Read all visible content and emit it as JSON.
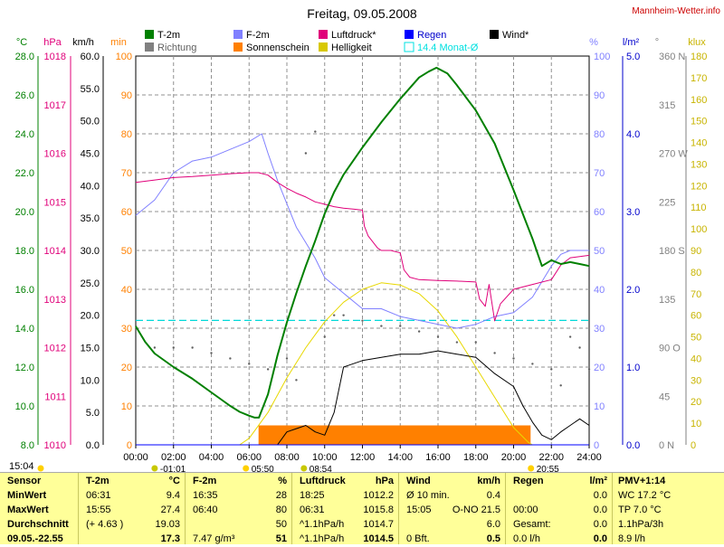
{
  "title": "Freitag, 09.05.2008",
  "site": "Mannheim-Wetter.info",
  "legend": [
    {
      "label": "T-2m",
      "color": "#008000"
    },
    {
      "label": "Richtung",
      "color": "#808080"
    },
    {
      "label": "F-2m",
      "color": "#8080ff"
    },
    {
      "label": "Sonnenschein",
      "color": "#ff8000"
    },
    {
      "label": "Luftdruck*",
      "color": "#e0007a"
    },
    {
      "label": "Helligkeit",
      "color": "#d8c800"
    },
    {
      "label": "Regen",
      "color": "#0000ff"
    },
    {
      "label": "14.4 Monat-Ø",
      "color": "#00e0e0"
    },
    {
      "label": "Wind*",
      "color": "#000000"
    }
  ],
  "axis_units": {
    "temp": "°C",
    "press": "hPa",
    "wind": "km/h",
    "sun": "min",
    "hum": "%",
    "rain": "l/m²",
    "dir": "°",
    "lux": "klux"
  },
  "axes": {
    "temp": {
      "color": "#008000",
      "ticks": [
        "28.0",
        "26.0",
        "24.0",
        "22.0",
        "20.0",
        "18.0",
        "16.0",
        "14.0",
        "12.0",
        "10.0",
        "8.0"
      ]
    },
    "press": {
      "color": "#e0007a",
      "ticks": [
        "1018",
        "1017",
        "1016",
        "1015",
        "1014",
        "1013",
        "1012",
        "1011",
        "1010"
      ]
    },
    "wind": {
      "color": "#000000",
      "ticks": [
        "60.0",
        "55.0",
        "50.0",
        "45.0",
        "40.0",
        "35.0",
        "30.0",
        "25.0",
        "20.0",
        "15.0",
        "10.0",
        "5.0",
        "0.0"
      ]
    },
    "sun": {
      "color": "#ff8000",
      "ticks": [
        "100",
        "90",
        "80",
        "70",
        "60",
        "50",
        "40",
        "30",
        "20",
        "10",
        "0"
      ]
    },
    "hum": {
      "color": "#8080ff",
      "ticks": [
        "100",
        "90",
        "80",
        "70",
        "60",
        "50",
        "40",
        "30",
        "20",
        "10",
        "0"
      ]
    },
    "rain": {
      "color": "#0000cc",
      "ticks": [
        "5.0",
        "4.0",
        "3.0",
        "2.0",
        "1.0",
        "0.0"
      ]
    },
    "dir": {
      "color": "#808080",
      "ticks": [
        "360 N",
        "315",
        "270 W",
        "225",
        "180 S",
        "135",
        "90 O",
        "45",
        "0 N"
      ]
    },
    "lux": {
      "color": "#c8b400",
      "ticks": [
        "180",
        "170",
        "160",
        "150",
        "140",
        "130",
        "120",
        "110",
        "100",
        "90",
        "80",
        "70",
        "60",
        "50",
        "40",
        "30",
        "20",
        "10",
        "0"
      ]
    }
  },
  "x_ticks": [
    "00:00",
    "02:00",
    "04:00",
    "06:00",
    "08:00",
    "10:00",
    "12:00",
    "14:00",
    "16:00",
    "18:00",
    "20:00",
    "22:00",
    "24:00"
  ],
  "sun_events": {
    "sunrise": "05:50",
    "sunset": "20:55",
    "moonset": "-01:01",
    "moonrise": "08:54",
    "left_time": "15:04"
  },
  "chart_data": {
    "type": "line",
    "title": "Freitag, 09.05.2008",
    "x_range": [
      0,
      24
    ],
    "x_unit": "hours",
    "monthly_mean_temp": 14.4,
    "series": [
      {
        "name": "T-2m",
        "unit": "°C",
        "x": [
          0,
          0.5,
          1,
          2,
          3,
          4,
          5,
          5.5,
          6,
          6.3,
          6.52,
          7,
          7.5,
          8,
          8.5,
          9,
          9.5,
          10,
          10.5,
          11,
          12,
          13,
          14,
          15,
          15.5,
          15.92,
          16.5,
          17,
          18,
          19,
          20,
          21,
          21.5,
          22,
          22.5,
          23,
          23.5,
          24
        ],
        "y": [
          14.1,
          13.3,
          12.7,
          12,
          11.4,
          10.7,
          10,
          9.7,
          9.5,
          9.4,
          9.4,
          10.6,
          12.6,
          14.3,
          15.8,
          17.2,
          18.5,
          19.9,
          21,
          21.9,
          23.3,
          24.6,
          25.8,
          26.9,
          27.2,
          27.4,
          27.1,
          26.5,
          25.2,
          23.5,
          21.1,
          18.6,
          17.2,
          17.5,
          17.3,
          17.4,
          17.3,
          17.2
        ]
      },
      {
        "name": "F-2m",
        "unit": "%",
        "x": [
          0,
          1,
          2,
          3,
          4,
          5,
          6,
          6.67,
          7,
          7.5,
          8,
          8.5,
          9,
          9.5,
          10,
          11,
          12,
          13,
          14,
          15,
          16,
          17,
          18,
          19,
          20,
          21,
          22,
          22.5,
          23,
          24
        ],
        "y": [
          59,
          63,
          70,
          73,
          74,
          76,
          78,
          80,
          75,
          68,
          62,
          56,
          52,
          48,
          43,
          39,
          35,
          35,
          33,
          32,
          31,
          30,
          31,
          33,
          34,
          38,
          46,
          49,
          50,
          50
        ]
      },
      {
        "name": "Luftdruck*",
        "unit": "hPa",
        "x": [
          0,
          1,
          2,
          3,
          4,
          5,
          6,
          6.5,
          7,
          7.5,
          8,
          8.5,
          9,
          9.5,
          10,
          10.5,
          11,
          11.5,
          12,
          12.1,
          12.3,
          12.5,
          12.8,
          13,
          13.5,
          14,
          14.2,
          14.5,
          15,
          16,
          17,
          18,
          18.2,
          18.5,
          18.7,
          19,
          19.3,
          20,
          21,
          22,
          22.5,
          23,
          24
        ],
        "y": [
          1015.4,
          1015.45,
          1015.5,
          1015.52,
          1015.55,
          1015.58,
          1015.6,
          1015.6,
          1015.55,
          1015.4,
          1015.28,
          1015.18,
          1015.1,
          1015.0,
          1014.95,
          1014.9,
          1014.87,
          1014.85,
          1014.83,
          1014.5,
          1014.3,
          1014.2,
          1014.05,
          1014.0,
          1014.0,
          1013.95,
          1013.6,
          1013.45,
          1013.4,
          1013.38,
          1013.37,
          1013.35,
          1013.0,
          1012.85,
          1013.3,
          1012.55,
          1012.9,
          1013.2,
          1013.3,
          1013.4,
          1013.7,
          1013.85,
          1013.9
        ]
      },
      {
        "name": "Helligkeit",
        "unit": "klux",
        "x": [
          5.5,
          6,
          7,
          8,
          9,
          10,
          11,
          12,
          13,
          14,
          15,
          16,
          17,
          18,
          19,
          20,
          20.8,
          21
        ],
        "y": [
          0,
          3,
          15,
          31,
          45,
          57,
          66,
          72,
          75,
          74,
          70,
          62,
          50,
          36,
          22,
          8,
          1,
          0
        ]
      },
      {
        "name": "Wind*",
        "unit": "km/h",
        "x": [
          0,
          7.5,
          8,
          8.5,
          9,
          9.5,
          10,
          10.5,
          11,
          12,
          13,
          14,
          15,
          16,
          17,
          18,
          19,
          20,
          20.5,
          21,
          21.5,
          22,
          22.5,
          23,
          23.5,
          24
        ],
        "y": [
          0,
          0,
          2,
          2.5,
          3,
          2,
          1.5,
          5,
          12,
          13,
          13.5,
          14,
          14,
          14.5,
          14,
          13.5,
          11,
          9,
          6,
          3.5,
          1.5,
          0.8,
          2,
          3,
          4,
          3
        ]
      },
      {
        "name": "Sonnenschein",
        "unit": "min",
        "x": [
          6.5,
          20.9
        ],
        "y": [
          5,
          5
        ]
      },
      {
        "name": "Regen",
        "unit": "l/m²",
        "x": [
          0,
          24
        ],
        "y": [
          0,
          0
        ]
      },
      {
        "name": "Richtung",
        "unit": "°",
        "points": [
          [
            1,
            90
          ],
          [
            2,
            90
          ],
          [
            3,
            90
          ],
          [
            4,
            85
          ],
          [
            5,
            80
          ],
          [
            6,
            75
          ],
          [
            7,
            70
          ],
          [
            8,
            80
          ],
          [
            8.5,
            60
          ],
          [
            9,
            270
          ],
          [
            9.5,
            290
          ],
          [
            10,
            100
          ],
          [
            10.5,
            120
          ],
          [
            11,
            120
          ],
          [
            12,
            115
          ],
          [
            13,
            110
          ],
          [
            14,
            110
          ],
          [
            15,
            105
          ],
          [
            16,
            100
          ],
          [
            17,
            95
          ],
          [
            18,
            95
          ],
          [
            19,
            85
          ],
          [
            20,
            80
          ],
          [
            21,
            75
          ],
          [
            22,
            70
          ],
          [
            22.5,
            55
          ],
          [
            23,
            100
          ],
          [
            23.5,
            90
          ],
          [
            24,
            70
          ]
        ]
      }
    ]
  },
  "table": {
    "left_time": "15:04",
    "sensor": {
      "head": "Sensor",
      "rows": [
        "MinWert",
        "MaxWert",
        "Durchschnitt",
        "09.05.-22.55"
      ]
    },
    "t2m": {
      "head": "T-2m",
      "unit": "°C",
      "rows": [
        [
          "06:31",
          "9.4"
        ],
        [
          "15:55",
          "27.4"
        ],
        [
          "(+ 4.63 )",
          "19.03"
        ],
        [
          "",
          "17.3"
        ]
      ]
    },
    "f2m": {
      "head": "F-2m",
      "unit": "%",
      "rows": [
        [
          "16:35",
          "28"
        ],
        [
          "06:40",
          "80"
        ],
        [
          "",
          "50"
        ],
        [
          "7.47 g/m³",
          "51"
        ]
      ]
    },
    "press": {
      "head": "Luftdruck",
      "unit": "hPa",
      "rows": [
        [
          "18:25",
          "1012.2"
        ],
        [
          "06:31",
          "1015.8"
        ],
        [
          "^1.1hPa/h",
          "1014.7"
        ],
        [
          "^1.1hPa/h",
          "1014.5"
        ]
      ]
    },
    "wind": {
      "head": "Wind",
      "unit": "km/h",
      "rows": [
        [
          "Ø 10 min.",
          "0.4"
        ],
        [
          "15:05",
          "O-NO 21.5"
        ],
        [
          "",
          "6.0"
        ],
        [
          "0 Bft.",
          "0.5"
        ]
      ]
    },
    "rain": {
      "head": "Regen",
      "unit": "l/m²",
      "rows": [
        [
          "",
          "0.0"
        ],
        [
          "00:00",
          "0.0"
        ],
        [
          "Gesamt:",
          "0.0"
        ],
        [
          "0.0 l/h",
          "0.0"
        ]
      ]
    },
    "pmv": {
      "head": "PMV+1:14",
      "rows": [
        "WC 17.2 °C",
        "TP 7.0 °C",
        "1.1hPa/3h",
        "8.9 l/h"
      ]
    }
  }
}
